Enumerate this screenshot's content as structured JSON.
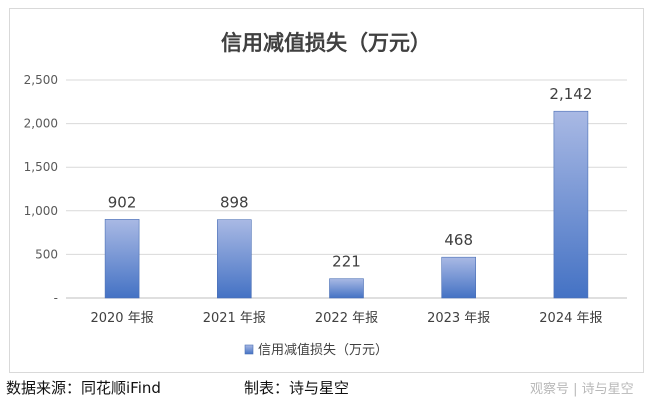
{
  "chart_data": {
    "type": "bar",
    "title": "信用减值损失（万元）",
    "categories": [
      "2020 年报",
      "2021 年报",
      "2022 年报",
      "2023 年报",
      "2024 年报"
    ],
    "series": [
      {
        "name": "信用减值损失（万元）",
        "values": [
          902,
          898,
          221,
          468,
          2142
        ]
      }
    ],
    "value_labels": [
      "902",
      "898",
      "221",
      "468",
      "2,142"
    ],
    "y_ticks": [
      "-",
      "500",
      "1,000",
      "1,500",
      "2,000",
      "2,500"
    ],
    "ylim": [
      0,
      2500
    ],
    "grid": true,
    "legend_position": "bottom",
    "bar_color_top": "#a9b9e4",
    "bar_color_bottom": "#4472c4"
  },
  "footer": {
    "source": "数据来源：同花顺iFind",
    "credit": "制表：诗与星空"
  },
  "watermark": "观察号 | 诗与星空"
}
